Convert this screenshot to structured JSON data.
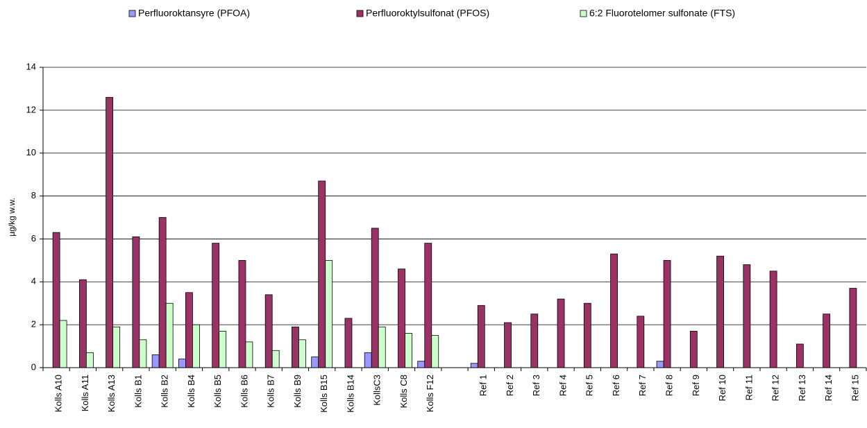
{
  "chart_data": {
    "type": "bar",
    "y_label": "µg/kg w.w.",
    "categories": [
      "Kolls A10",
      "Kolls A11",
      "Kolls A13",
      "Kolls B1",
      "Kolls B2",
      "Kolls B4",
      "Kolls B5",
      "Kolls B6",
      "Kolls B7",
      "Kolls B9",
      "Kolls B15",
      "Kolls B14",
      "KollsC3",
      "Kolls C8",
      "Kolls F12",
      null,
      "Ref 1",
      "Ref 2",
      "Ref 3",
      "Ref 4",
      "Ref 5",
      "Ref 6",
      "Ref 7",
      "Ref 8",
      "Ref 9",
      "Ref 10",
      "Ref 11",
      "Ref 12",
      "Ref 13",
      "Ref 14",
      "Ref 15"
    ],
    "series": [
      {
        "name": "Perfluoroktansyre (PFOA)",
        "color": "#9999ff",
        "values": [
          null,
          null,
          null,
          null,
          0.6,
          0.4,
          null,
          null,
          null,
          null,
          0.5,
          null,
          0.7,
          null,
          0.3,
          null,
          0.2,
          null,
          null,
          null,
          null,
          null,
          null,
          0.3,
          null,
          null,
          null,
          null,
          null,
          null,
          null
        ]
      },
      {
        "name": "Perfluoroktylsulfonat (PFOS)",
        "color": "#993366",
        "values": [
          6.3,
          4.1,
          12.6,
          6.1,
          7.0,
          3.5,
          5.8,
          5.0,
          3.4,
          1.9,
          8.7,
          2.3,
          6.5,
          4.6,
          5.8,
          null,
          2.9,
          2.1,
          2.5,
          3.2,
          3.0,
          5.3,
          2.4,
          5.0,
          1.7,
          5.2,
          4.8,
          4.5,
          1.1,
          2.5,
          3.7
        ]
      },
      {
        "name": "6:2 Fluorotelomer sulfonate (FTS)",
        "color": "#ccffcc",
        "values": [
          2.2,
          0.7,
          1.9,
          1.3,
          3.0,
          2.0,
          1.7,
          1.2,
          0.8,
          1.3,
          5.0,
          null,
          1.9,
          1.6,
          1.5,
          null,
          null,
          null,
          null,
          null,
          null,
          null,
          null,
          null,
          null,
          null,
          null,
          null,
          null,
          null,
          null
        ]
      }
    ],
    "ylim": [
      0,
      14
    ],
    "yticks": [
      0,
      2,
      4,
      6,
      8,
      10,
      12,
      14
    ],
    "grid": true,
    "legend": "top"
  }
}
